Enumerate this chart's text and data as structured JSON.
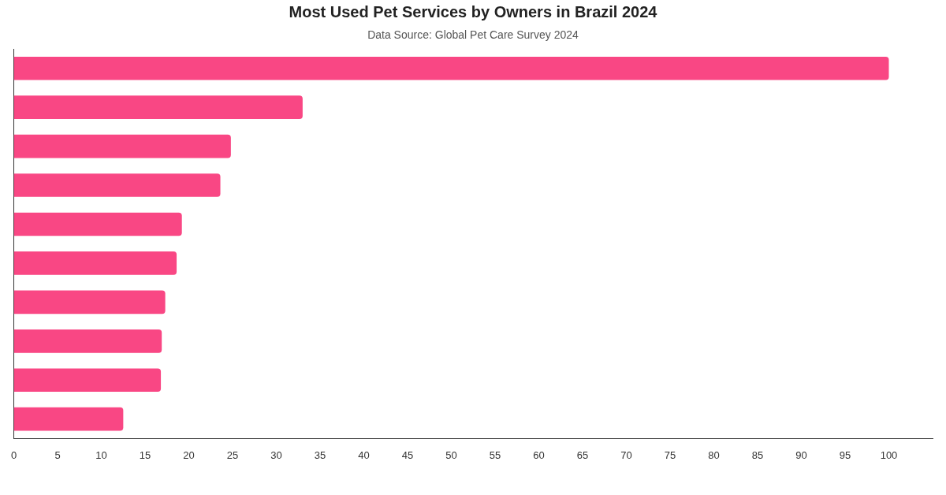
{
  "chart_data": {
    "type": "bar",
    "orientation": "horizontal",
    "title": "Most Used Pet Services by Owners in Brazil 2024",
    "subtitle": "Data Source: Global Pet Care Survey 2024",
    "categories": [
      null,
      null,
      null,
      null,
      null,
      null,
      null,
      null,
      null,
      null
    ],
    "values": [
      100,
      33,
      24.8,
      23.6,
      19.2,
      18.6,
      17.3,
      16.9,
      16.8,
      12.5
    ],
    "color": "#f94784",
    "xlim": [
      0,
      105
    ],
    "xticks": [
      0,
      5,
      10,
      15,
      20,
      25,
      30,
      35,
      40,
      45,
      50,
      55,
      60,
      65,
      70,
      75,
      80,
      85,
      90,
      95,
      100
    ],
    "tick_labels": "x"
  }
}
